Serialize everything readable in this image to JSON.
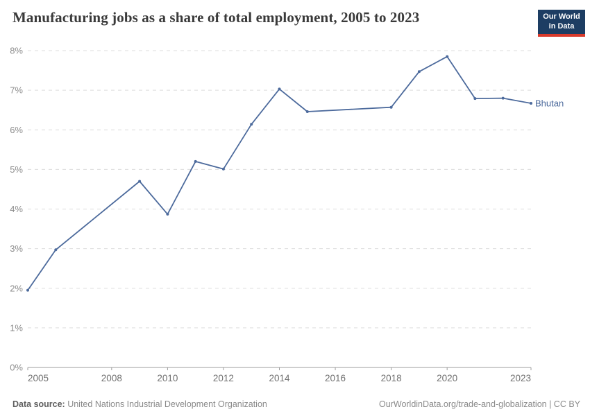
{
  "header": {
    "title": "Manufacturing jobs as a share of total employment, 2005 to 2023",
    "logo": {
      "line1": "Our World",
      "line2": "in Data"
    }
  },
  "chart_data": {
    "type": "line",
    "title": "Manufacturing jobs as a share of total employment, 2005 to 2023",
    "xlabel": "",
    "ylabel": "",
    "xlim": [
      2005,
      2023
    ],
    "ylim": [
      0,
      8
    ],
    "yticks": [
      0,
      1,
      2,
      3,
      4,
      5,
      6,
      7,
      8
    ],
    "ytick_suffix": "%",
    "xticks": [
      2005,
      2008,
      2010,
      2012,
      2014,
      2016,
      2018,
      2020,
      2023
    ],
    "grid": "horizontal-dashed",
    "legend_position": "end-of-line-label",
    "note": "years 2007, 2008, 2016, 2017 have no data points; line interpolates",
    "series": [
      {
        "name": "Bhutan",
        "points": [
          [
            2005,
            1.95
          ],
          [
            2006,
            2.97
          ],
          [
            2009,
            4.7
          ],
          [
            2010,
            3.87
          ],
          [
            2011,
            5.2
          ],
          [
            2012,
            5.01
          ],
          [
            2013,
            6.14
          ],
          [
            2014,
            7.03
          ],
          [
            2015,
            6.46
          ],
          [
            2018,
            6.57
          ],
          [
            2019,
            7.47
          ],
          [
            2020,
            7.85
          ],
          [
            2021,
            6.79
          ],
          [
            2022,
            6.8
          ],
          [
            2023,
            6.67
          ]
        ]
      }
    ]
  },
  "footer": {
    "source_label": "Data source:",
    "source_value": " United Nations Industrial Development Organization",
    "attribution": "OurWorldinData.org/trade-and-globalization | CC BY"
  },
  "colors": {
    "series_line": "#4c6a9c",
    "gridline": "#dcdcdc",
    "axis": "#9e9e9e",
    "ytick_label": "#8c8c8c",
    "xtick_label": "#707070",
    "logo_bg": "#1d3d63",
    "logo_accent": "#d93a2b"
  }
}
